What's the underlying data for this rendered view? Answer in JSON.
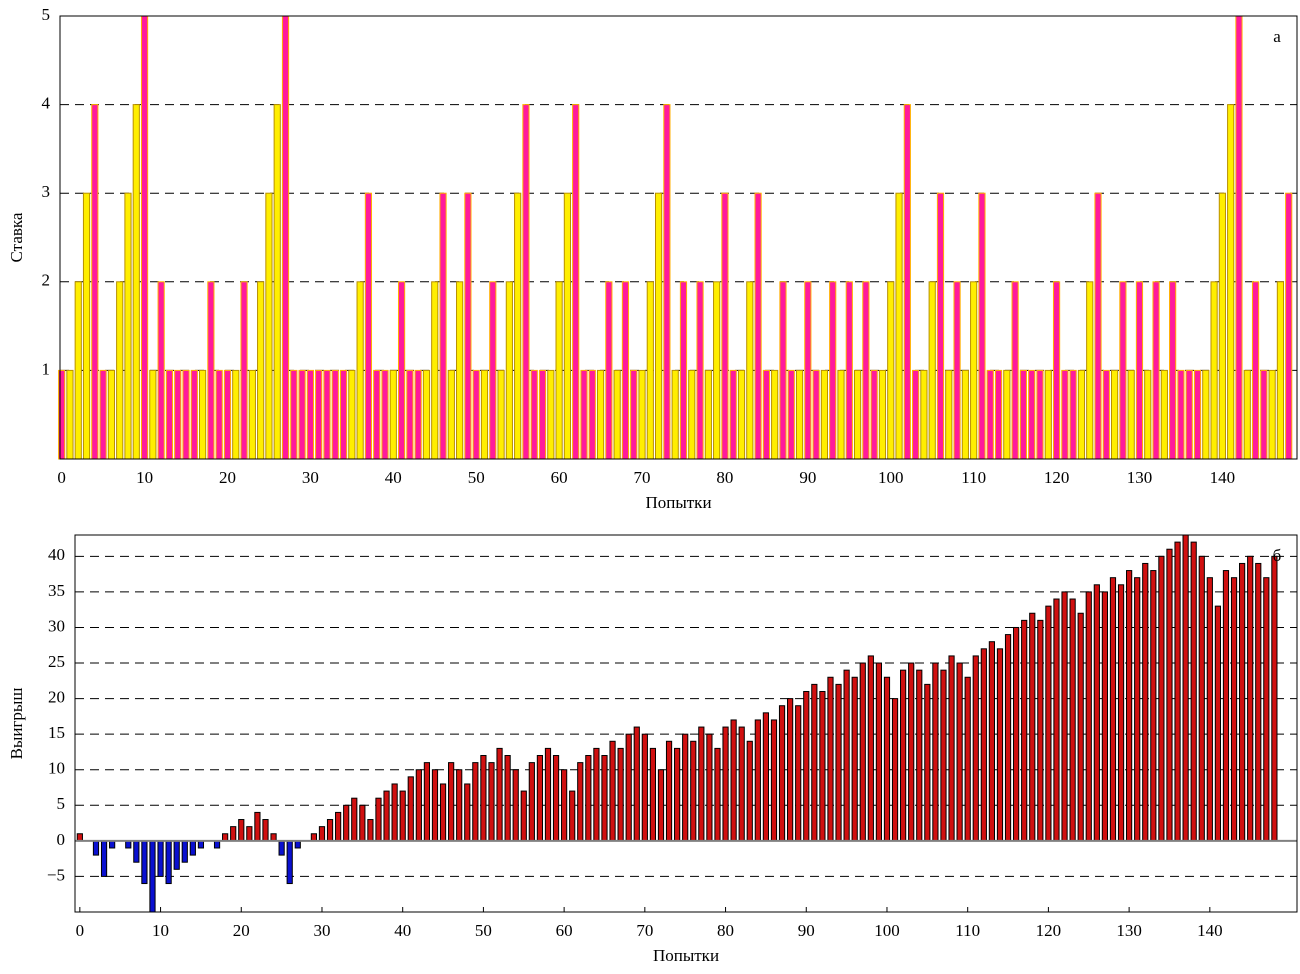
{
  "chart_data": [
    {
      "type": "bar",
      "ylabel": "Ставка",
      "xlabel": "Попытки",
      "annotation": "а",
      "x": [
        0,
        1,
        2,
        3,
        4,
        5,
        6,
        7,
        8,
        9,
        10,
        11,
        12,
        13,
        14,
        15,
        16,
        17,
        18,
        19,
        20,
        21,
        22,
        23,
        24,
        25,
        26,
        27,
        28,
        29,
        30,
        31,
        32,
        33,
        34,
        35,
        36,
        37,
        38,
        39,
        40,
        41,
        42,
        43,
        44,
        45,
        46,
        47,
        48,
        49,
        50,
        51,
        52,
        53,
        54,
        55,
        56,
        57,
        58,
        59,
        60,
        61,
        62,
        63,
        64,
        65,
        66,
        67,
        68,
        69,
        70,
        71,
        72,
        73,
        74,
        75,
        76,
        77,
        78,
        79,
        80,
        81,
        82,
        83,
        84,
        85,
        86,
        87,
        88,
        89,
        90,
        91,
        92,
        93,
        94,
        95,
        96,
        97,
        98,
        99,
        100,
        101,
        102,
        103,
        104,
        105,
        106,
        107,
        108,
        109,
        110,
        111,
        112,
        113,
        114,
        115,
        116,
        117,
        118,
        119,
        120,
        121,
        122,
        123,
        124,
        125,
        126,
        127,
        128,
        129,
        130,
        131,
        132,
        133,
        134,
        135,
        136,
        137,
        138,
        139,
        140,
        141,
        142,
        143,
        144,
        145,
        146,
        147,
        148
      ],
      "series": [
        {
          "color": "#ffee00",
          "stroke": "#b89000",
          "values": [
            null,
            1,
            2,
            3,
            null,
            null,
            1,
            2,
            3,
            4,
            null,
            1,
            null,
            null,
            null,
            null,
            null,
            1,
            null,
            null,
            null,
            1,
            null,
            1,
            2,
            3,
            4,
            null,
            null,
            null,
            null,
            null,
            null,
            null,
            null,
            1,
            2,
            null,
            null,
            null,
            1,
            null,
            null,
            null,
            1,
            2,
            null,
            1,
            2,
            null,
            null,
            1,
            null,
            1,
            2,
            3,
            null,
            null,
            null,
            1,
            2,
            3,
            null,
            null,
            null,
            1,
            null,
            1,
            null,
            null,
            1,
            2,
            3,
            null,
            1,
            null,
            1,
            null,
            1,
            2,
            null,
            null,
            1,
            2,
            null,
            null,
            1,
            null,
            null,
            1,
            null,
            null,
            1,
            null,
            1,
            null,
            1,
            null,
            null,
            1,
            2,
            3,
            null,
            null,
            1,
            2,
            null,
            1,
            null,
            1,
            2,
            null,
            null,
            null,
            1,
            null,
            null,
            null,
            null,
            1,
            null,
            null,
            null,
            1,
            2,
            null,
            null,
            1,
            null,
            1,
            null,
            1,
            null,
            1,
            null,
            null,
            null,
            null,
            1,
            2,
            3,
            4,
            null,
            1,
            null,
            null,
            1,
            2,
            null
          ]
        },
        {
          "color": "#ff1a9c",
          "stroke": "#ffb000",
          "values": [
            1,
            null,
            null,
            null,
            4,
            1,
            null,
            null,
            null,
            null,
            5,
            null,
            2,
            1,
            1,
            1,
            1,
            null,
            2,
            1,
            1,
            null,
            2,
            null,
            null,
            null,
            null,
            5,
            1,
            1,
            1,
            1,
            1,
            1,
            1,
            null,
            null,
            3,
            1,
            1,
            null,
            2,
            1,
            1,
            null,
            null,
            3,
            null,
            null,
            3,
            1,
            null,
            2,
            null,
            null,
            null,
            4,
            1,
            1,
            null,
            null,
            null,
            4,
            1,
            1,
            null,
            2,
            null,
            2,
            1,
            null,
            null,
            null,
            4,
            null,
            2,
            null,
            2,
            null,
            null,
            3,
            1,
            null,
            null,
            3,
            1,
            null,
            2,
            1,
            null,
            2,
            1,
            null,
            2,
            null,
            2,
            null,
            2,
            1,
            null,
            null,
            null,
            4,
            1,
            null,
            null,
            3,
            null,
            2,
            null,
            null,
            3,
            1,
            1,
            null,
            2,
            1,
            1,
            1,
            null,
            2,
            1,
            1,
            null,
            null,
            3,
            1,
            null,
            2,
            null,
            2,
            null,
            2,
            null,
            2,
            1,
            1,
            1,
            null,
            null,
            null,
            null,
            5,
            null,
            2,
            1,
            null,
            null,
            3
          ]
        }
      ],
      "xlim": [
        -0.2,
        149
      ],
      "xticks": [
        0,
        10,
        20,
        30,
        40,
        50,
        60,
        70,
        80,
        90,
        100,
        110,
        120,
        130,
        140
      ],
      "ylim": [
        0,
        5
      ],
      "yticks": [
        1,
        2,
        3,
        4,
        5
      ],
      "grid": true
    },
    {
      "type": "bar",
      "ylabel": "Выигрыш",
      "xlabel": "Попытки",
      "annotation": "б",
      "x": [
        0,
        1,
        2,
        3,
        4,
        5,
        6,
        7,
        8,
        9,
        10,
        11,
        12,
        13,
        14,
        15,
        16,
        17,
        18,
        19,
        20,
        21,
        22,
        23,
        24,
        25,
        26,
        27,
        28,
        29,
        30,
        31,
        32,
        33,
        34,
        35,
        36,
        37,
        38,
        39,
        40,
        41,
        42,
        43,
        44,
        45,
        46,
        47,
        48,
        49,
        50,
        51,
        52,
        53,
        54,
        55,
        56,
        57,
        58,
        59,
        60,
        61,
        62,
        63,
        64,
        65,
        66,
        67,
        68,
        69,
        70,
        71,
        72,
        73,
        74,
        75,
        76,
        77,
        78,
        79,
        80,
        81,
        82,
        83,
        84,
        85,
        86,
        87,
        88,
        89,
        90,
        91,
        92,
        93,
        94,
        95,
        96,
        97,
        98,
        99,
        100,
        101,
        102,
        103,
        104,
        105,
        106,
        107,
        108,
        109,
        110,
        111,
        112,
        113,
        114,
        115,
        116,
        117,
        118,
        119,
        120,
        121,
        122,
        123,
        124,
        125,
        126,
        127,
        128,
        129,
        130,
        131,
        132,
        133,
        134,
        135,
        136,
        137,
        138,
        139,
        140,
        141,
        142,
        143,
        144,
        145,
        146,
        147,
        148
      ],
      "values": [
        1,
        0,
        -2,
        -5,
        -1,
        0,
        -1,
        -3,
        -6,
        -10,
        -5,
        -6,
        -4,
        -3,
        -2,
        -1,
        0,
        -1,
        1,
        2,
        3,
        2,
        4,
        3,
        1,
        -2,
        -6,
        -1,
        0,
        1,
        2,
        3,
        4,
        5,
        6,
        5,
        3,
        6,
        7,
        8,
        7,
        9,
        10,
        11,
        10,
        8,
        11,
        10,
        8,
        11,
        12,
        11,
        13,
        12,
        10,
        7,
        11,
        12,
        13,
        12,
        10,
        7,
        11,
        12,
        13,
        12,
        14,
        13,
        15,
        16,
        15,
        13,
        10,
        14,
        13,
        15,
        14,
        16,
        15,
        13,
        16,
        17,
        16,
        14,
        17,
        18,
        17,
        19,
        20,
        19,
        21,
        22,
        21,
        23,
        22,
        24,
        23,
        25,
        26,
        25,
        23,
        20,
        24,
        25,
        24,
        22,
        25,
        24,
        26,
        25,
        23,
        26,
        27,
        28,
        27,
        29,
        30,
        31,
        32,
        31,
        33,
        34,
        35,
        34,
        32,
        35,
        36,
        35,
        37,
        36,
        38,
        37,
        39,
        38,
        40,
        41,
        42,
        43,
        42,
        40,
        37,
        33,
        38,
        37,
        39,
        40,
        39,
        37,
        40
      ],
      "color": "#d01010",
      "negative_color": "#0a10d0",
      "xlim": [
        -0.6,
        150.8
      ],
      "xticks": [
        0,
        10,
        20,
        30,
        40,
        50,
        60,
        70,
        80,
        90,
        100,
        110,
        120,
        130,
        140
      ],
      "ylim": [
        -10,
        43
      ],
      "yticks": [
        {
          "value": -5,
          "label": "−5"
        },
        0,
        5,
        10,
        15,
        20,
        25,
        30,
        35,
        40
      ],
      "grid": true
    }
  ]
}
